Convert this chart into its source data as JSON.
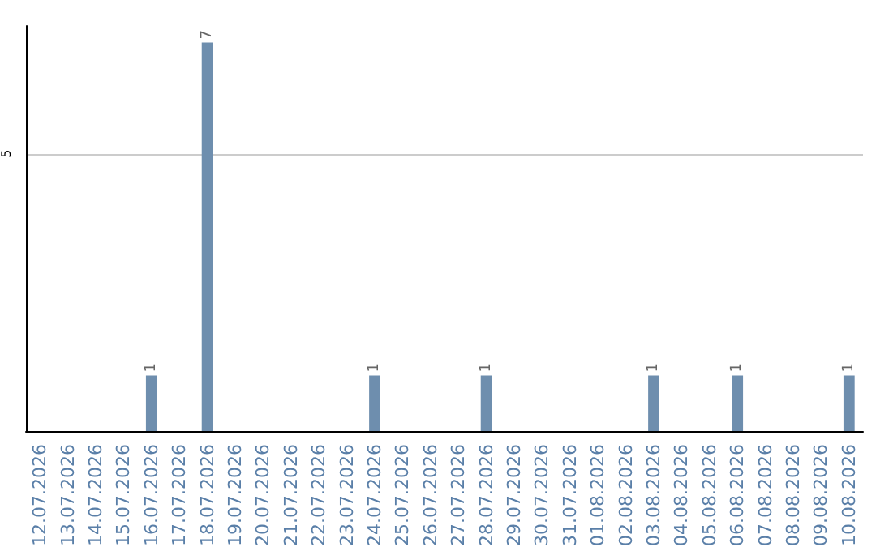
{
  "chart_data": {
    "type": "bar",
    "categories": [
      "12.07.2026",
      "13.07.2026",
      "14.07.2026",
      "15.07.2026",
      "16.07.2026",
      "17.07.2026",
      "18.07.2026",
      "19.07.2026",
      "20.07.2026",
      "21.07.2026",
      "22.07.2026",
      "23.07.2026",
      "24.07.2026",
      "25.07.2026",
      "26.07.2026",
      "27.07.2026",
      "28.07.2026",
      "29.07.2026",
      "30.07.2026",
      "31.07.2026",
      "01.08.2026",
      "02.08.2026",
      "03.08.2026",
      "04.08.2026",
      "05.08.2026",
      "06.08.2026",
      "07.08.2026",
      "08.08.2026",
      "09.08.2026",
      "10.08.2026"
    ],
    "values": [
      0,
      0,
      0,
      0,
      1,
      0,
      7,
      0,
      0,
      0,
      0,
      0,
      1,
      0,
      0,
      0,
      1,
      0,
      0,
      0,
      0,
      0,
      1,
      0,
      0,
      1,
      0,
      0,
      0,
      1
    ],
    "value_labels": [
      null,
      null,
      null,
      null,
      "1",
      null,
      "7",
      null,
      null,
      null,
      null,
      null,
      "1",
      null,
      null,
      null,
      "1",
      null,
      null,
      null,
      null,
      null,
      "1",
      null,
      null,
      "1",
      null,
      null,
      null,
      "1"
    ],
    "color": "#6e8eae",
    "ylim": [
      0,
      7.3
    ],
    "yticks": [
      5
    ],
    "grid": "y"
  }
}
